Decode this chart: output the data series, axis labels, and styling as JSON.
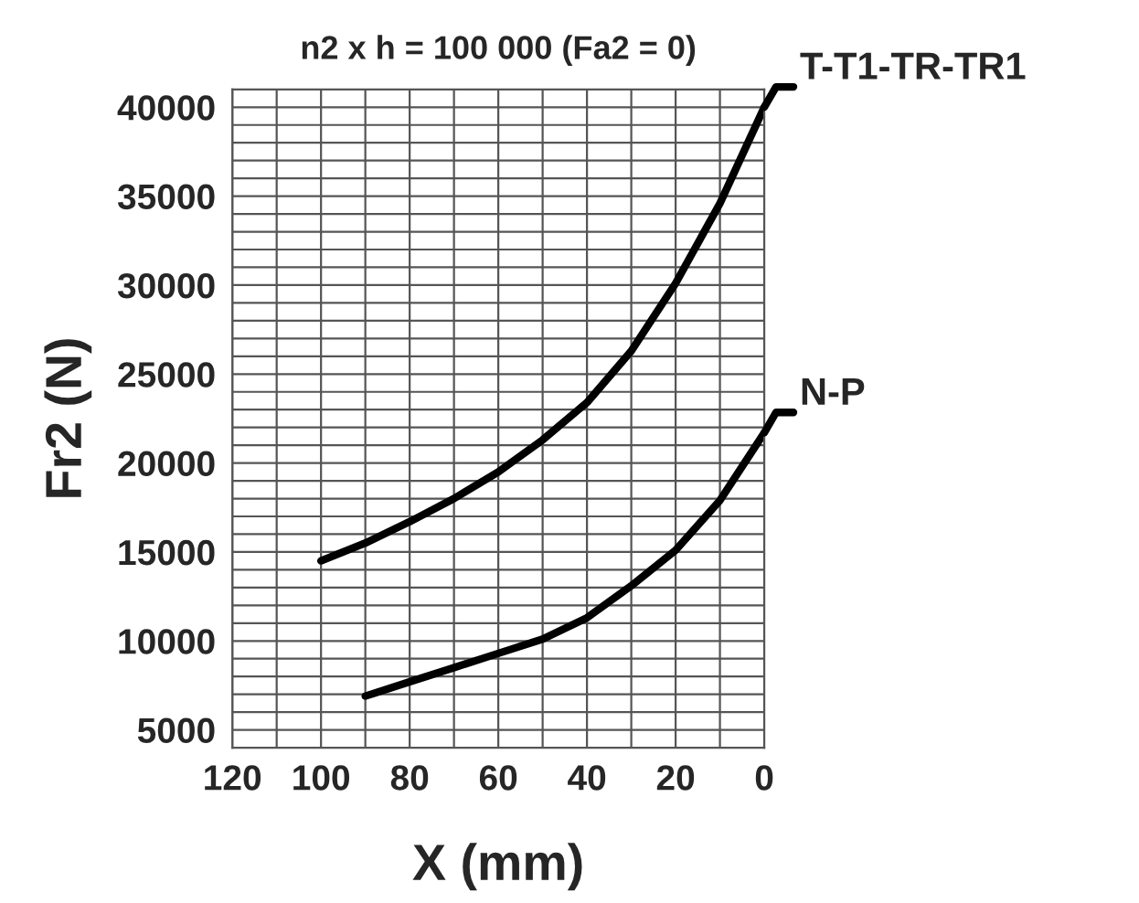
{
  "chart_data": {
    "type": "line",
    "title": "n2 x h = 100 000 (Fa2 = 0)",
    "xlabel": "X (mm)",
    "ylabel": "Fr2 (N)",
    "xlim": [
      120,
      0
    ],
    "xticks": [
      120,
      {
        "value": 110,
        "label": null
      },
      100,
      {
        "value": 90,
        "label": null
      },
      80,
      {
        "value": 70,
        "label": null
      },
      60,
      {
        "value": 50,
        "label": null
      },
      40,
      {
        "value": 30,
        "label": null
      },
      20,
      {
        "value": 10,
        "label": null
      },
      0
    ],
    "ylim": [
      4000,
      41000
    ],
    "yticks": [
      5000,
      {
        "value": 6000,
        "label": null
      },
      {
        "value": 7000,
        "label": null
      },
      {
        "value": 8000,
        "label": null
      },
      {
        "value": 9000,
        "label": null
      },
      10000,
      {
        "value": 11000,
        "label": null
      },
      {
        "value": 12000,
        "label": null
      },
      {
        "value": 13000,
        "label": null
      },
      {
        "value": 14000,
        "label": null
      },
      15000,
      {
        "value": 16000,
        "label": null
      },
      {
        "value": 17000,
        "label": null
      },
      {
        "value": 18000,
        "label": null
      },
      {
        "value": 19000,
        "label": null
      },
      20000,
      {
        "value": 21000,
        "label": null
      },
      {
        "value": 22000,
        "label": null
      },
      {
        "value": 23000,
        "label": null
      },
      {
        "value": 24000,
        "label": null
      },
      25000,
      {
        "value": 26000,
        "label": null
      },
      {
        "value": 27000,
        "label": null
      },
      {
        "value": 28000,
        "label": null
      },
      {
        "value": 29000,
        "label": null
      },
      30000,
      {
        "value": 31000,
        "label": null
      },
      {
        "value": 32000,
        "label": null
      },
      {
        "value": 33000,
        "label": null
      },
      {
        "value": 34000,
        "label": null
      },
      35000,
      {
        "value": 36000,
        "label": null
      },
      {
        "value": 37000,
        "label": null
      },
      {
        "value": 38000,
        "label": null
      },
      {
        "value": 39000,
        "label": null
      },
      40000
    ],
    "grid": true,
    "legend": false,
    "marker": "none",
    "line_style": "solid",
    "series": [
      {
        "name": "T-T1-TR-TR1",
        "color": "#000000",
        "x": [
          100,
          90,
          80,
          70,
          60,
          50,
          40,
          30,
          20,
          10,
          0
        ],
        "values": [
          14500,
          15500,
          16700,
          18000,
          19500,
          21300,
          23400,
          26300,
          30100,
          34600,
          40000
        ]
      },
      {
        "name": "N-P",
        "color": "#000000",
        "x": [
          90,
          80,
          70,
          60,
          50,
          40,
          30,
          20,
          10,
          0
        ],
        "values": [
          6900,
          7700,
          8500,
          9300,
          10100,
          11300,
          13100,
          15100,
          17900,
          21700
        ]
      }
    ]
  }
}
